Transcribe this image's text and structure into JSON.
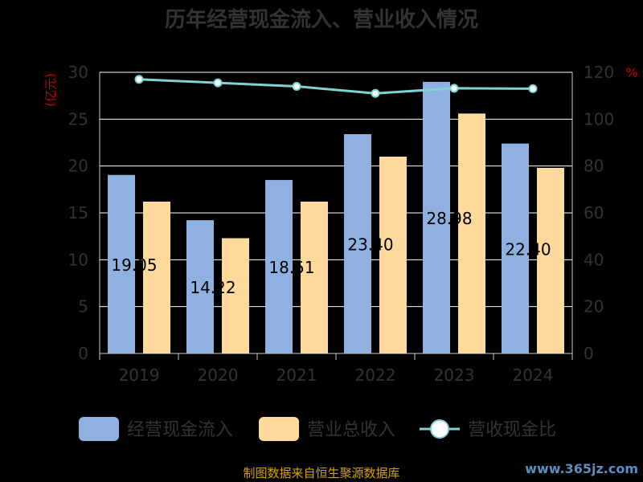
{
  "title": "历年经营现金流入、营业收入情况",
  "source": "制图数据来自恒生聚源数据库",
  "watermark": "www.365jz.com",
  "colors": {
    "series0": "#8eb1e0",
    "series1": "#fdd99b",
    "series2": "#7fd3d3",
    "axis": "#cccccc",
    "grid": "#ffffff",
    "unit": "#cc0000"
  },
  "chart_data": {
    "type": "bar",
    "categories": [
      "2019",
      "2020",
      "2021",
      "2022",
      "2023",
      "2024"
    ],
    "series": [
      {
        "name": "经营现金流入",
        "type": "bar",
        "axis": "left",
        "values": [
          19.05,
          14.22,
          18.51,
          23.4,
          28.98,
          22.4
        ],
        "labels": [
          "19.05",
          "14.22",
          "18.51",
          "23.40",
          "28.98",
          "22.40"
        ]
      },
      {
        "name": "营业总收入",
        "type": "bar",
        "axis": "left",
        "values": [
          16.2,
          12.3,
          16.2,
          21.0,
          25.6,
          19.8
        ]
      },
      {
        "name": "营收现金比",
        "type": "line",
        "axis": "right",
        "values": [
          117.0,
          115.5,
          114.0,
          111.0,
          113.2,
          113.0
        ]
      }
    ],
    "left_axis": {
      "label": "(亿元)",
      "ylim": [
        0,
        30
      ],
      "ticks": [
        0,
        5,
        10,
        15,
        20,
        25,
        30
      ]
    },
    "right_axis": {
      "label": "%",
      "ylim": [
        0,
        120
      ],
      "ticks": [
        0,
        20,
        40,
        60,
        80,
        100,
        120
      ]
    },
    "grid": true,
    "legend_position": "bottom"
  }
}
